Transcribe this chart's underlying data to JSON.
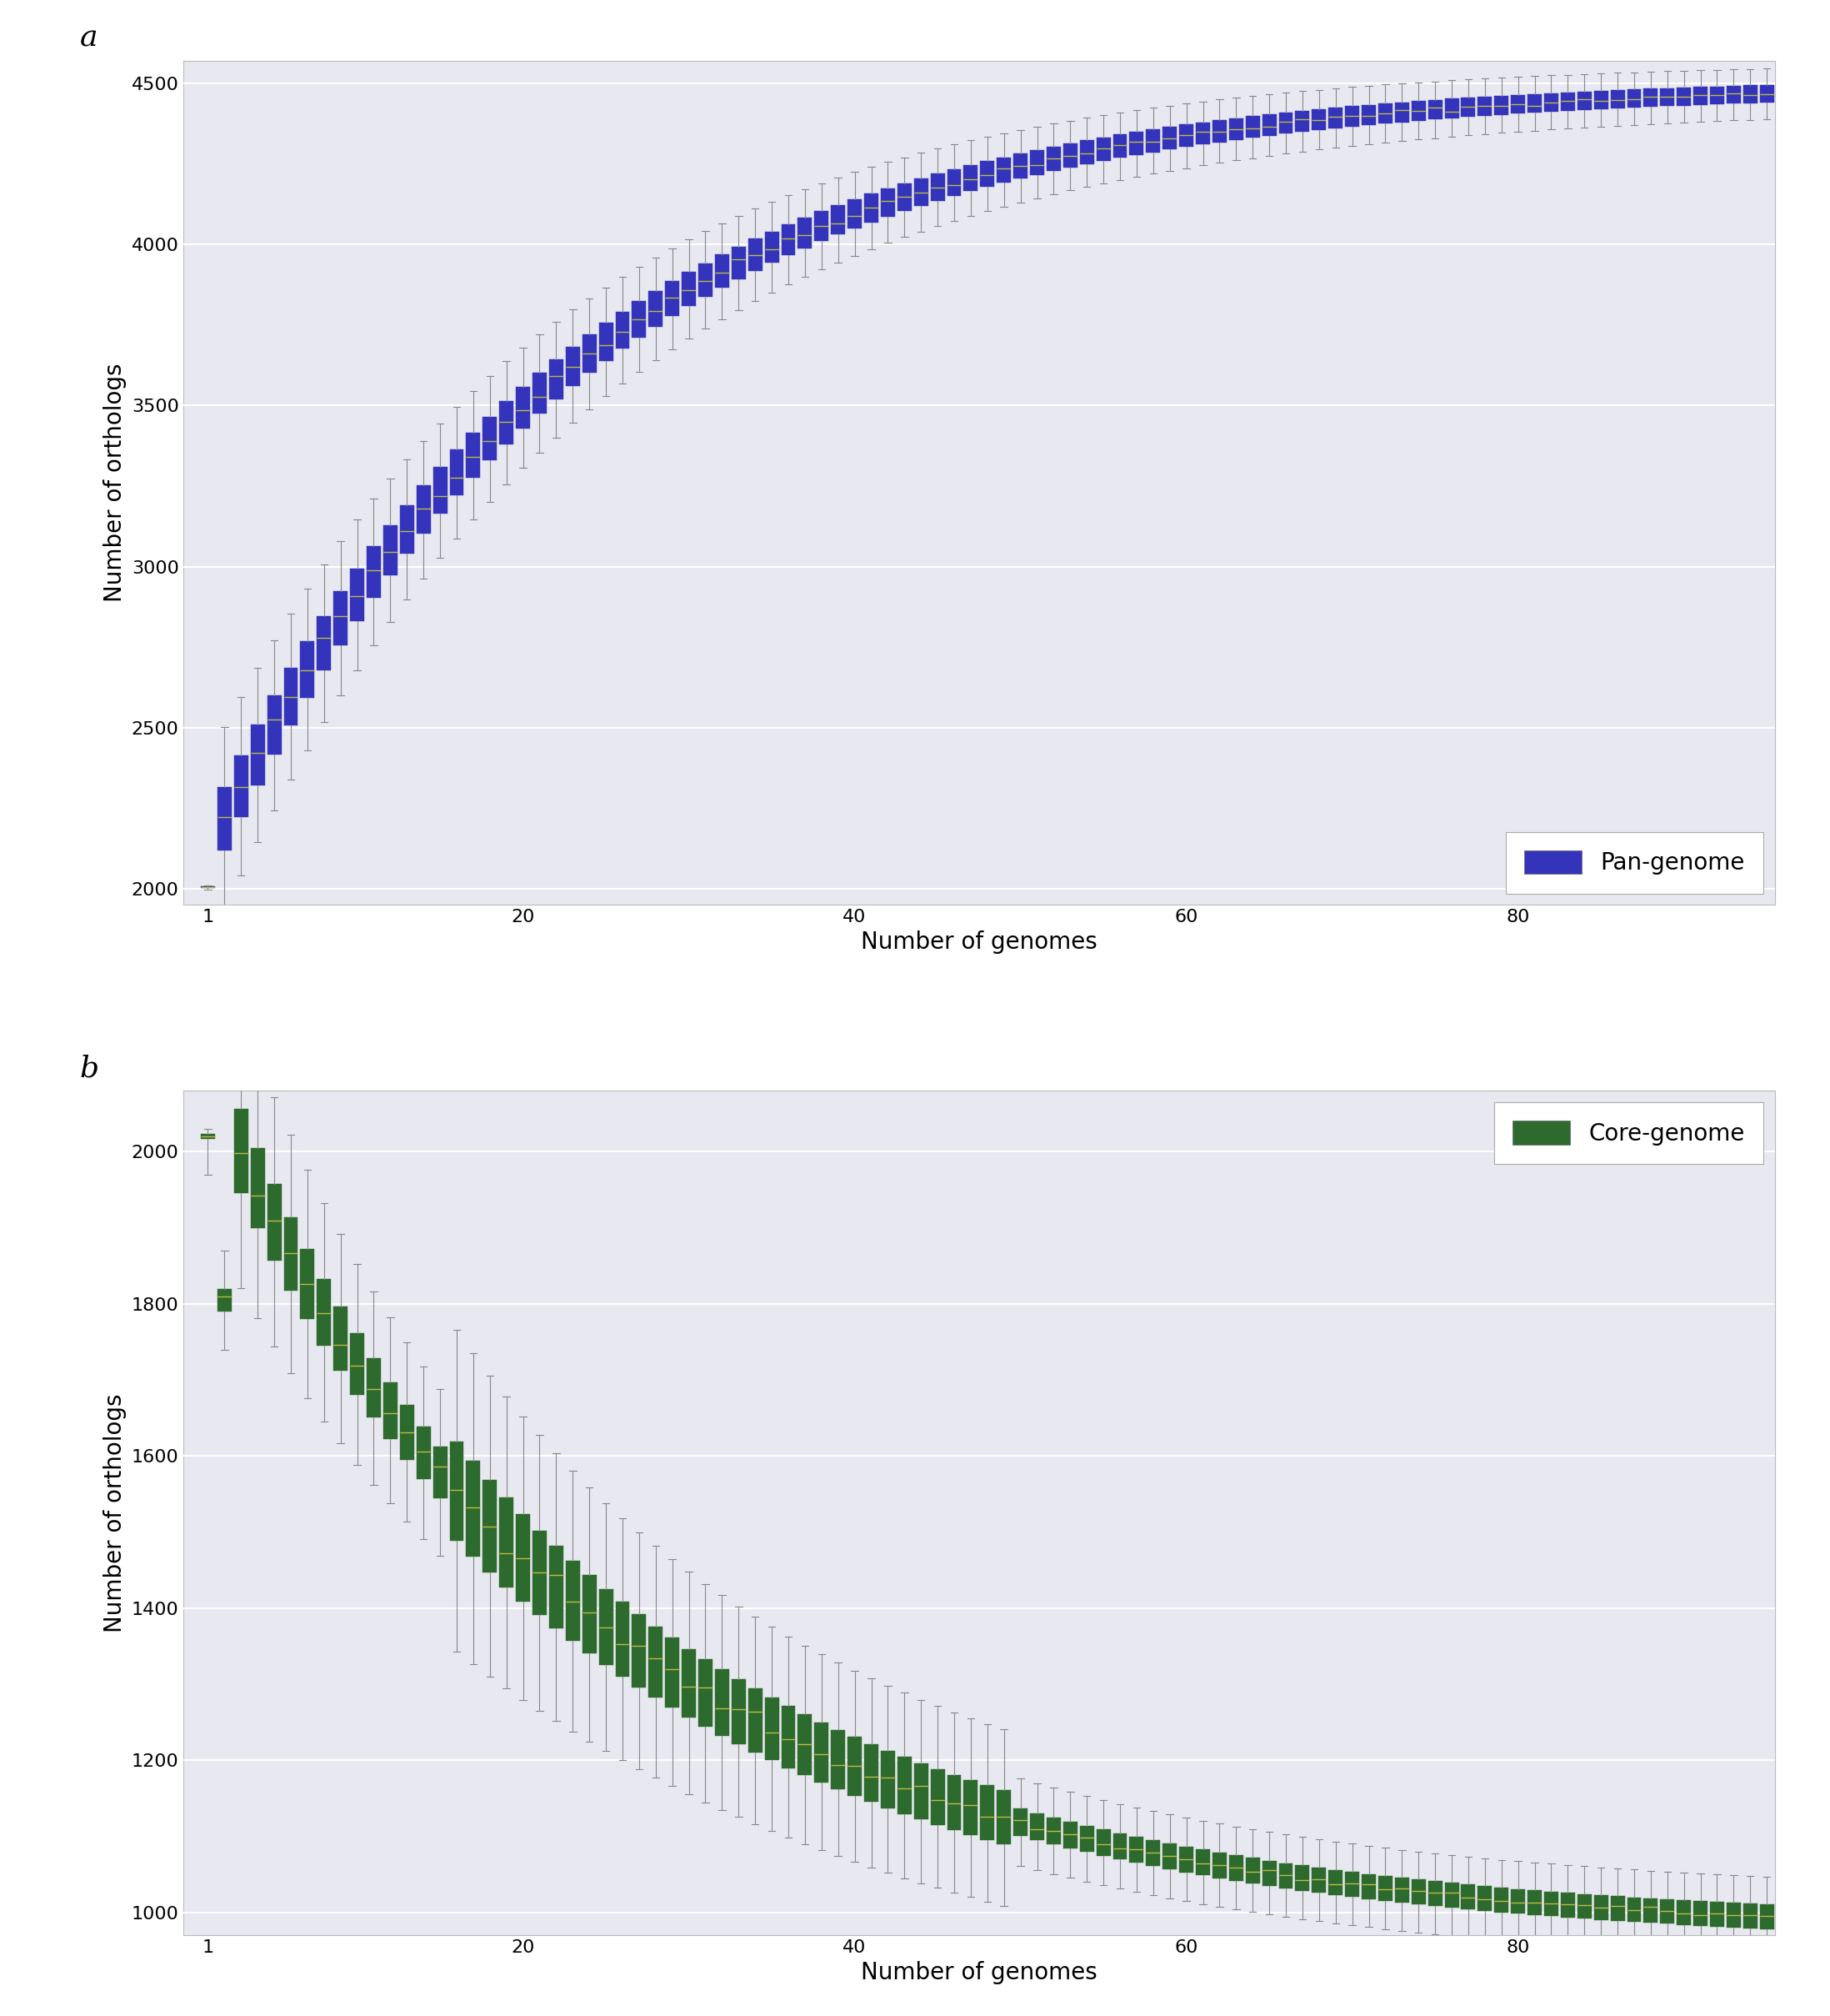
{
  "panel_a": {
    "label": "a",
    "ylabel": "Number of orthologs",
    "xlabel": "Number of genomes",
    "ylim": [
      1950,
      4570
    ],
    "yticks": [
      2000,
      2500,
      3000,
      3500,
      4000,
      4500
    ],
    "legend_label": "Pan-genome",
    "color": "#3333bb",
    "whisker_color": "#888888",
    "median_color": "#bbbb44",
    "n_genomes": 95,
    "legend_loc": "lower right"
  },
  "panel_b": {
    "label": "b",
    "ylabel": "Number of orthologs",
    "xlabel": "Number of genomes",
    "ylim": [
      970,
      2080
    ],
    "yticks": [
      1000,
      1200,
      1400,
      1600,
      1800,
      2000
    ],
    "legend_label": "Core-genome",
    "color": "#2d6a2d",
    "whisker_color": "#888888",
    "median_color": "#bbbb44",
    "n_genomes": 95,
    "legend_loc": "upper right"
  },
  "ax_background": "#e8e8f0",
  "grid_color": "#ffffff",
  "grid_linewidth": 1.5,
  "figure_facecolor": "#ffffff",
  "label_fontsize": 20,
  "tick_fontsize": 16,
  "legend_fontsize": 20,
  "panel_label_fontsize": 26
}
